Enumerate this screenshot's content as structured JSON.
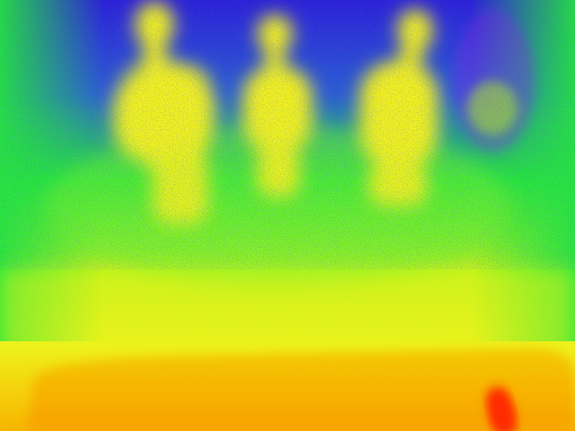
{
  "image": {
    "kind": "thermal-camera-frame",
    "palette": {
      "cold": "#2a1fd6",
      "cool": "#23e63a",
      "mild": "#b8f21a",
      "warm": "#f2f21a",
      "hot": "#f7a400",
      "hottest": "#ff2a00",
      "violet_noise": "#8a20e6"
    },
    "subjects": [
      {
        "name": "figure-left"
      },
      {
        "name": "figure-middle"
      },
      {
        "name": "figure-right"
      }
    ],
    "hotspot": {
      "name": "warm-object-bottom-right"
    }
  }
}
